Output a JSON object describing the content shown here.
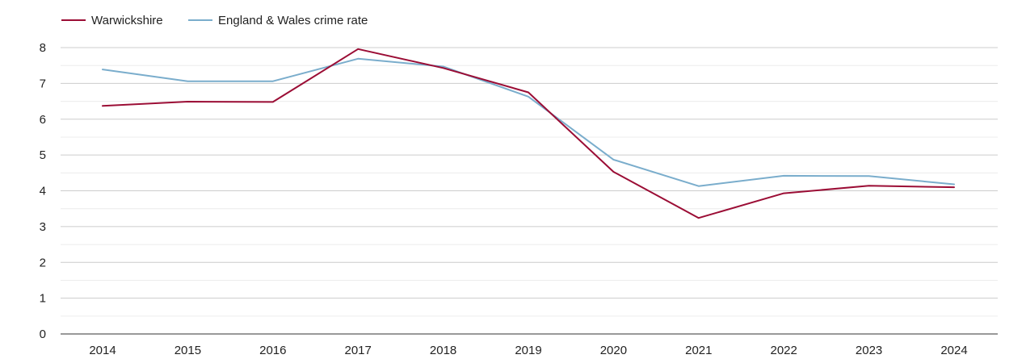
{
  "chart_data": {
    "type": "line",
    "title": "",
    "xlabel": "",
    "ylabel": "",
    "x": [
      "2014",
      "2015",
      "2016",
      "2017",
      "2018",
      "2019",
      "2020",
      "2021",
      "2022",
      "2023",
      "2024"
    ],
    "ylim": [
      0,
      8
    ],
    "yticks": [
      0,
      1,
      2,
      3,
      4,
      5,
      6,
      7,
      8
    ],
    "grid": true,
    "minor_grid": true,
    "legend_position": "top-left",
    "series": [
      {
        "name": "Warwickshire",
        "color": "#9b0d35",
        "values": [
          6.37,
          6.49,
          6.48,
          7.96,
          7.43,
          6.75,
          4.53,
          3.24,
          3.93,
          4.14,
          4.1
        ]
      },
      {
        "name": "England & Wales crime rate",
        "color": "#7aadcc",
        "values": [
          7.39,
          7.06,
          7.06,
          7.69,
          7.47,
          6.63,
          4.87,
          4.13,
          4.42,
          4.41,
          4.18
        ]
      }
    ]
  }
}
